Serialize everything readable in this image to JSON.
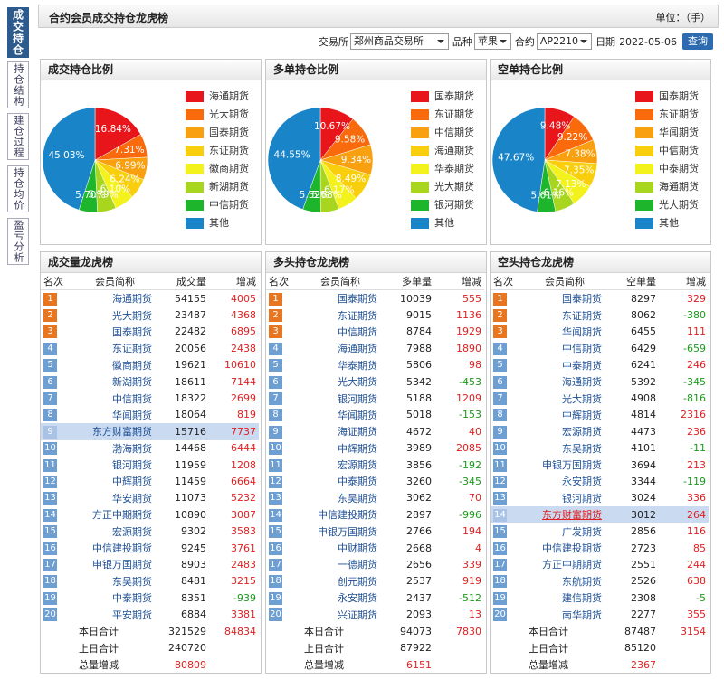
{
  "header": {
    "title": "合约会员成交持仓龙虎榜",
    "unit": "单位：（手）"
  },
  "sidebar": {
    "tabs": [
      "成交持仓",
      "持仓结构",
      "建仓过程",
      "持仓均价",
      "盈亏分析"
    ]
  },
  "filters": {
    "exchange_label": "交易所",
    "exchange": "郑州商品交易所",
    "product_label": "品种",
    "product": "苹果",
    "contract_label": "合约",
    "contract": "AP2210",
    "date_label": "日期",
    "date": "2022-05-06",
    "button": "查询"
  },
  "chart_data": [
    {
      "type": "pie",
      "title": "成交持仓比例",
      "categories": [
        "海通期货",
        "光大期货",
        "国泰期货",
        "东证期货",
        "徽商期货",
        "新湖期货",
        "中信期货",
        "其他"
      ],
      "values": [
        16.84,
        7.31,
        6.99,
        6.24,
        6.1,
        5.79,
        5.7,
        45.03
      ],
      "value_labels": [
        "16.84%",
        "7.31%",
        "6.99%",
        "6.24%",
        "6.10%",
        "5.79%",
        "5.70%",
        "45.03%"
      ],
      "colors": [
        "#e8151b",
        "#f86a0c",
        "#f8a00f",
        "#f9cf0d",
        "#f4f21c",
        "#a8d51e",
        "#1db52b",
        "#1985c8"
      ]
    },
    {
      "type": "pie",
      "title": "多单持仓比例",
      "categories": [
        "国泰期货",
        "东证期货",
        "中信期货",
        "海通期货",
        "华泰期货",
        "光大期货",
        "银河期货",
        "其他"
      ],
      "values": [
        10.67,
        9.58,
        9.34,
        8.49,
        6.17,
        5.68,
        5.52,
        44.55
      ],
      "value_labels": [
        "10.67%",
        "9.58%",
        "9.34%",
        "8.49%",
        "6.17%",
        "5.68%",
        "5.52%",
        "44.55%"
      ],
      "colors": [
        "#e8151b",
        "#f86a0c",
        "#f8a00f",
        "#f9cf0d",
        "#f4f21c",
        "#a8d51e",
        "#1db52b",
        "#1985c8"
      ]
    },
    {
      "type": "pie",
      "title": "空单持仓比例",
      "categories": [
        "国泰期货",
        "东证期货",
        "华闻期货",
        "中信期货",
        "中泰期货",
        "海通期货",
        "光大期货",
        "其他"
      ],
      "values": [
        9.48,
        9.22,
        7.38,
        7.35,
        7.13,
        6.16,
        5.61,
        47.67
      ],
      "value_labels": [
        "9.48%",
        "9.22%",
        "7.38%",
        "7.35%",
        "7.13%",
        "6.16%",
        "5.61%",
        "47.67%"
      ],
      "colors": [
        "#e8151b",
        "#f86a0c",
        "#f8a00f",
        "#f9cf0d",
        "#f4f21c",
        "#a8d51e",
        "#1db52b",
        "#1985c8"
      ]
    }
  ],
  "tables": [
    {
      "title": "成交量龙虎榜",
      "headers": [
        "名次",
        "会员简称",
        "成交量",
        "增减"
      ],
      "highlight_rank": 9,
      "highlight_name_red": false,
      "rows": [
        [
          1,
          "海通期货",
          54155,
          4005
        ],
        [
          2,
          "光大期货",
          23487,
          4368
        ],
        [
          3,
          "国泰期货",
          22482,
          6895
        ],
        [
          4,
          "东证期货",
          20056,
          2438
        ],
        [
          5,
          "徽商期货",
          19621,
          10610
        ],
        [
          6,
          "新湖期货",
          18611,
          7144
        ],
        [
          7,
          "中信期货",
          18322,
          2699
        ],
        [
          8,
          "华闻期货",
          18064,
          819
        ],
        [
          9,
          "东方财富期货",
          15716,
          7737
        ],
        [
          10,
          "渤海期货",
          14468,
          6444
        ],
        [
          11,
          "银河期货",
          11959,
          1208
        ],
        [
          12,
          "中辉期货",
          11459,
          6664
        ],
        [
          13,
          "华安期货",
          11073,
          5232
        ],
        [
          14,
          "方正中期期货",
          10890,
          3087
        ],
        [
          15,
          "宏源期货",
          9302,
          3583
        ],
        [
          16,
          "中信建投期货",
          9245,
          3761
        ],
        [
          17,
          "申银万国期货",
          8903,
          2483
        ],
        [
          18,
          "东吴期货",
          8481,
          3215
        ],
        [
          19,
          "中泰期货",
          8351,
          -939
        ],
        [
          20,
          "平安期货",
          6884,
          3381
        ]
      ],
      "totals": [
        {
          "label": "本日合计",
          "value": 321529,
          "change": 84834
        },
        {
          "label": "上日合计",
          "value": 240720
        },
        {
          "label": "总量增减",
          "value": 80809
        }
      ]
    },
    {
      "title": "多头持仓龙虎榜",
      "headers": [
        "名次",
        "会员简称",
        "多单量",
        "增减"
      ],
      "rows": [
        [
          1,
          "国泰期货",
          10039,
          555
        ],
        [
          2,
          "东证期货",
          9015,
          1136
        ],
        [
          3,
          "中信期货",
          8784,
          1929
        ],
        [
          4,
          "海通期货",
          7988,
          1890
        ],
        [
          5,
          "华泰期货",
          5806,
          98
        ],
        [
          6,
          "光大期货",
          5342,
          -453
        ],
        [
          7,
          "银河期货",
          5188,
          1209
        ],
        [
          8,
          "华闻期货",
          5018,
          -153
        ],
        [
          9,
          "海证期货",
          4672,
          40
        ],
        [
          10,
          "中辉期货",
          3989,
          2085
        ],
        [
          11,
          "宏源期货",
          3856,
          -192
        ],
        [
          12,
          "中泰期货",
          3260,
          -345
        ],
        [
          13,
          "东吴期货",
          3062,
          70
        ],
        [
          14,
          "中信建投期货",
          2897,
          -996
        ],
        [
          15,
          "申银万国期货",
          2766,
          194
        ],
        [
          16,
          "中财期货",
          2668,
          4
        ],
        [
          17,
          "一德期货",
          2656,
          339
        ],
        [
          18,
          "创元期货",
          2537,
          919
        ],
        [
          19,
          "永安期货",
          2437,
          -512
        ],
        [
          20,
          "兴证期货",
          2093,
          13
        ]
      ],
      "totals": [
        {
          "label": "本日合计",
          "value": 94073,
          "change": 7830
        },
        {
          "label": "上日合计",
          "value": 87922
        },
        {
          "label": "总量增减",
          "value": 6151
        }
      ]
    },
    {
      "title": "空头持仓龙虎榜",
      "headers": [
        "名次",
        "会员简称",
        "空单量",
        "增减"
      ],
      "highlight_rank": 14,
      "highlight_name_red": true,
      "rows": [
        [
          1,
          "国泰期货",
          8297,
          329
        ],
        [
          2,
          "东证期货",
          8062,
          -380
        ],
        [
          3,
          "华闻期货",
          6455,
          111
        ],
        [
          4,
          "中信期货",
          6429,
          -659
        ],
        [
          5,
          "中泰期货",
          6241,
          246
        ],
        [
          6,
          "海通期货",
          5392,
          -345
        ],
        [
          7,
          "光大期货",
          4908,
          -816
        ],
        [
          8,
          "中辉期货",
          4814,
          2316
        ],
        [
          9,
          "宏源期货",
          4473,
          236
        ],
        [
          10,
          "东吴期货",
          4101,
          -11
        ],
        [
          11,
          "申银万国期货",
          3694,
          213
        ],
        [
          12,
          "永安期货",
          3344,
          -119
        ],
        [
          13,
          "银河期货",
          3024,
          336
        ],
        [
          14,
          "东方财富期货",
          3012,
          264
        ],
        [
          15,
          "广发期货",
          2856,
          116
        ],
        [
          16,
          "中信建投期货",
          2723,
          85
        ],
        [
          17,
          "方正中期期货",
          2551,
          244
        ],
        [
          18,
          "东航期货",
          2526,
          638
        ],
        [
          19,
          "建信期货",
          2308,
          -5
        ],
        [
          20,
          "南华期货",
          2277,
          355
        ]
      ],
      "totals": [
        {
          "label": "本日合计",
          "value": 87487,
          "change": 3154
        },
        {
          "label": "上日合计",
          "value": 85120
        },
        {
          "label": "总量增减",
          "value": 2367
        }
      ]
    }
  ]
}
